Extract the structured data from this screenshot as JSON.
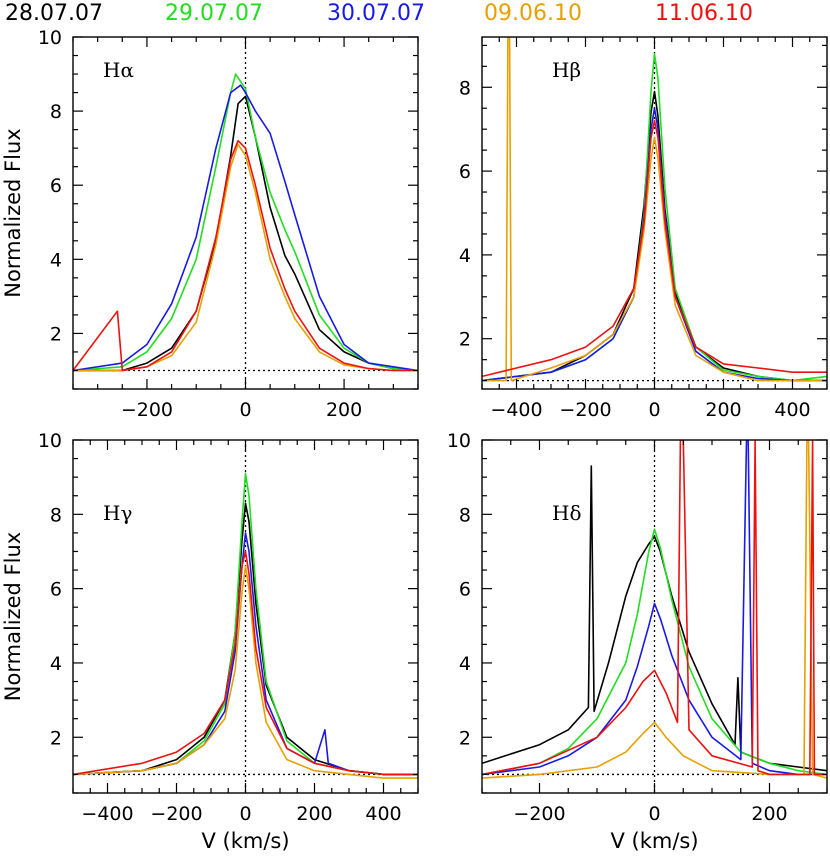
{
  "legend": [
    {
      "label": "28.07.07",
      "color": "#000000"
    },
    {
      "label": "29.07.07",
      "color": "#22dd22"
    },
    {
      "label": "30.07.07",
      "color": "#1a1ae6"
    },
    {
      "label": "09.06.10",
      "color": "#e8a000"
    },
    {
      "label": "11.06.10",
      "color": "#ee1111"
    }
  ],
  "chart_data": [
    {
      "type": "line",
      "panel": "top-left",
      "label": "Hα",
      "xlim": [
        -350,
        350
      ],
      "ylim": [
        0.5,
        10
      ],
      "xticks": [
        -200,
        0,
        200
      ],
      "yticks": [
        2,
        4,
        6,
        8,
        10
      ],
      "ylabel": "Normalized Flux",
      "xlabel": "",
      "series": [
        {
          "color": "#000000",
          "x": [
            -350,
            -250,
            -200,
            -150,
            -100,
            -60,
            -30,
            -15,
            0,
            20,
            50,
            80,
            100,
            150,
            200,
            250,
            300,
            350
          ],
          "y": [
            1.0,
            1.0,
            1.2,
            1.6,
            2.6,
            4.5,
            6.8,
            8.2,
            8.4,
            7.3,
            5.4,
            4.1,
            3.6,
            2.1,
            1.5,
            1.2,
            1.05,
            1.0
          ]
        },
        {
          "color": "#22dd22",
          "x": [
            -350,
            -250,
            -200,
            -150,
            -100,
            -60,
            -30,
            -20,
            0,
            20,
            50,
            80,
            100,
            150,
            200,
            250,
            300,
            350
          ],
          "y": [
            1.0,
            1.1,
            1.5,
            2.4,
            4.0,
            6.5,
            8.5,
            9.0,
            8.6,
            7.3,
            5.8,
            4.8,
            4.2,
            2.5,
            1.6,
            1.2,
            1.05,
            1.0
          ]
        },
        {
          "color": "#1a1ae6",
          "x": [
            -350,
            -250,
            -200,
            -150,
            -100,
            -60,
            -30,
            -10,
            0,
            20,
            50,
            80,
            100,
            150,
            200,
            250,
            300,
            350
          ],
          "y": [
            1.0,
            1.2,
            1.7,
            2.8,
            4.6,
            7.0,
            8.5,
            8.7,
            8.5,
            8.0,
            7.4,
            6.1,
            5.2,
            3.0,
            1.7,
            1.2,
            1.1,
            1.0
          ]
        },
        {
          "color": "#e8a000",
          "x": [
            -350,
            -250,
            -200,
            -150,
            -100,
            -60,
            -30,
            -15,
            0,
            20,
            50,
            80,
            100,
            150,
            200,
            250,
            300,
            350
          ],
          "y": [
            1.0,
            1.0,
            1.1,
            1.4,
            2.3,
            4.4,
            6.5,
            7.1,
            6.8,
            5.8,
            4.0,
            3.0,
            2.4,
            1.5,
            1.15,
            1.05,
            1.0,
            1.0
          ]
        },
        {
          "color": "#ee1111",
          "x": [
            -350,
            -260,
            -250,
            -200,
            -150,
            -100,
            -60,
            -30,
            -15,
            0,
            20,
            50,
            80,
            100,
            150,
            200,
            250,
            300,
            350
          ],
          "y": [
            1.0,
            2.6,
            1.0,
            1.1,
            1.5,
            2.6,
            4.6,
            6.7,
            7.2,
            7.0,
            6.0,
            4.3,
            3.2,
            2.6,
            1.6,
            1.2,
            1.05,
            1.0,
            1.0
          ]
        }
      ]
    },
    {
      "type": "line",
      "panel": "top-right",
      "label": "Hβ",
      "xlim": [
        -500,
        500
      ],
      "ylim": [
        0.8,
        9.2
      ],
      "xticks": [
        -400,
        -200,
        0,
        200,
        400
      ],
      "yticks": [
        2,
        4,
        6,
        8
      ],
      "ylabel": "",
      "xlabel": "",
      "series": [
        {
          "color": "#000000",
          "x": [
            -500,
            -300,
            -200,
            -120,
            -60,
            -30,
            -10,
            0,
            10,
            30,
            60,
            120,
            200,
            300,
            400,
            500
          ],
          "y": [
            1.0,
            1.2,
            1.6,
            2.1,
            3.2,
            5.2,
            7.4,
            7.9,
            7.3,
            5.1,
            3.1,
            1.8,
            1.3,
            1.1,
            1.0,
            1.0
          ]
        },
        {
          "color": "#22dd22",
          "x": [
            -500,
            -300,
            -200,
            -120,
            -60,
            -30,
            -10,
            0,
            10,
            30,
            60,
            120,
            200,
            300,
            400,
            500
          ],
          "y": [
            1.0,
            1.2,
            1.5,
            2.0,
            3.0,
            5.0,
            7.9,
            8.8,
            8.2,
            5.6,
            3.2,
            1.8,
            1.25,
            1.1,
            1.0,
            1.1
          ]
        },
        {
          "color": "#1a1ae6",
          "x": [
            -500,
            -300,
            -200,
            -120,
            -60,
            -30,
            -10,
            0,
            10,
            30,
            60,
            120,
            200,
            300,
            400,
            500
          ],
          "y": [
            1.0,
            1.2,
            1.5,
            2.0,
            3.0,
            4.9,
            7.0,
            7.5,
            7.0,
            5.0,
            3.0,
            1.7,
            1.2,
            1.05,
            1.0,
            1.0
          ]
        },
        {
          "color": "#e8a000",
          "x": [
            -500,
            -430,
            -425,
            -420,
            -415,
            -300,
            -200,
            -120,
            -60,
            -30,
            -10,
            0,
            10,
            30,
            60,
            120,
            200,
            300,
            400,
            500
          ],
          "y": [
            1.0,
            1.0,
            9.2,
            9.2,
            1.0,
            1.3,
            1.6,
            2.1,
            3.0,
            4.6,
            6.3,
            6.8,
            6.3,
            4.6,
            2.8,
            1.6,
            1.2,
            1.0,
            1.0,
            1.0
          ]
        },
        {
          "color": "#ee1111",
          "x": [
            -500,
            -300,
            -200,
            -120,
            -60,
            -30,
            -10,
            0,
            10,
            30,
            60,
            120,
            200,
            300,
            400,
            500
          ],
          "y": [
            1.1,
            1.5,
            1.8,
            2.3,
            3.2,
            4.8,
            6.8,
            7.2,
            6.8,
            4.8,
            3.0,
            1.8,
            1.4,
            1.3,
            1.2,
            1.2
          ]
        }
      ]
    },
    {
      "type": "line",
      "panel": "bottom-left",
      "label": "Hγ",
      "xlim": [
        -500,
        500
      ],
      "ylim": [
        0.5,
        10
      ],
      "xticks": [
        -400,
        -200,
        0,
        200,
        400
      ],
      "yticks": [
        2,
        4,
        6,
        8,
        10
      ],
      "ylabel": "Normalized Flux",
      "xlabel": "V (km/s)",
      "series": [
        {
          "color": "#000000",
          "x": [
            -500,
            -300,
            -200,
            -120,
            -60,
            -30,
            -10,
            0,
            10,
            30,
            60,
            120,
            200,
            300,
            400,
            500
          ],
          "y": [
            1.0,
            1.1,
            1.4,
            2.0,
            3.0,
            4.8,
            7.3,
            8.3,
            7.8,
            5.6,
            3.4,
            2.0,
            1.4,
            1.1,
            1.0,
            1.0
          ]
        },
        {
          "color": "#22dd22",
          "x": [
            -500,
            -300,
            -200,
            -120,
            -60,
            -30,
            -10,
            0,
            10,
            30,
            60,
            120,
            200,
            300,
            400,
            500
          ],
          "y": [
            1.0,
            1.1,
            1.3,
            1.9,
            2.9,
            4.8,
            7.8,
            9.1,
            8.5,
            6.0,
            3.5,
            1.9,
            1.3,
            1.1,
            1.0,
            1.0
          ]
        },
        {
          "color": "#1a1ae6",
          "x": [
            -500,
            -300,
            -200,
            -120,
            -60,
            -30,
            -10,
            0,
            10,
            30,
            60,
            120,
            200,
            230,
            240,
            300,
            400,
            500
          ],
          "y": [
            1.0,
            1.1,
            1.3,
            1.8,
            2.7,
            4.3,
            6.6,
            7.5,
            7.0,
            5.0,
            3.0,
            1.7,
            1.3,
            2.2,
            1.3,
            1.1,
            1.0,
            1.0
          ]
        },
        {
          "color": "#e8a000",
          "x": [
            -500,
            -300,
            -200,
            -120,
            -60,
            -30,
            -10,
            0,
            10,
            30,
            60,
            120,
            200,
            300,
            400,
            500
          ],
          "y": [
            1.0,
            1.1,
            1.3,
            1.8,
            2.5,
            3.8,
            5.9,
            6.6,
            6.0,
            4.0,
            2.4,
            1.4,
            1.1,
            1.0,
            0.9,
            0.9
          ]
        },
        {
          "color": "#ee1111",
          "x": [
            -500,
            -300,
            -200,
            -120,
            -60,
            -30,
            -10,
            0,
            10,
            30,
            60,
            120,
            200,
            300,
            400,
            500
          ],
          "y": [
            1.0,
            1.3,
            1.6,
            2.1,
            3.0,
            4.5,
            6.6,
            7.0,
            6.4,
            4.4,
            2.8,
            1.7,
            1.3,
            1.1,
            1.0,
            1.0
          ]
        }
      ]
    },
    {
      "type": "line",
      "panel": "bottom-right",
      "label": "Hδ",
      "xlim": [
        -300,
        300
      ],
      "ylim": [
        0.5,
        10
      ],
      "xticks": [
        -200,
        0,
        200
      ],
      "yticks": [
        2,
        4,
        6,
        8,
        10
      ],
      "ylabel": "",
      "xlabel": "V (km/s)",
      "series": [
        {
          "color": "#000000",
          "x": [
            -300,
            -200,
            -150,
            -115,
            -110,
            -105,
            -80,
            -50,
            -30,
            -10,
            0,
            10,
            30,
            60,
            100,
            140,
            145,
            150,
            200,
            250,
            300
          ],
          "y": [
            1.3,
            1.8,
            2.2,
            2.8,
            9.3,
            2.7,
            4.0,
            5.8,
            6.7,
            7.2,
            7.4,
            7.0,
            5.8,
            4.3,
            2.9,
            1.8,
            3.6,
            1.6,
            1.3,
            1.2,
            1.1
          ]
        },
        {
          "color": "#22dd22",
          "x": [
            -300,
            -200,
            -150,
            -100,
            -50,
            -30,
            -10,
            0,
            10,
            30,
            60,
            100,
            150,
            200,
            250,
            300
          ],
          "y": [
            1.0,
            1.3,
            1.7,
            2.5,
            4.0,
            5.3,
            7.0,
            7.6,
            7.1,
            5.7,
            3.9,
            2.5,
            1.6,
            1.3,
            1.1,
            1.0
          ]
        },
        {
          "color": "#1a1ae6",
          "x": [
            -300,
            -200,
            -150,
            -100,
            -50,
            -30,
            -10,
            0,
            10,
            30,
            60,
            100,
            150,
            160,
            163,
            170,
            200,
            250,
            300
          ],
          "y": [
            1.0,
            1.2,
            1.5,
            2.0,
            3.0,
            3.9,
            5.0,
            5.6,
            5.2,
            4.2,
            3.0,
            2.0,
            1.4,
            10,
            10,
            1.3,
            1.1,
            1.0,
            1.0
          ]
        },
        {
          "color": "#e8a000",
          "x": [
            -300,
            -200,
            -100,
            -50,
            -20,
            0,
            20,
            50,
            100,
            200,
            260,
            265,
            268,
            275,
            300
          ],
          "y": [
            0.9,
            1.0,
            1.2,
            1.6,
            2.1,
            2.4,
            2.0,
            1.5,
            1.1,
            1.0,
            1.0,
            10,
            10,
            1.0,
            0.9
          ]
        },
        {
          "color": "#ee1111",
          "x": [
            -300,
            -200,
            -100,
            -50,
            -20,
            0,
            20,
            40,
            45,
            50,
            60,
            100,
            170,
            175,
            180,
            200,
            270,
            275,
            278,
            300
          ],
          "y": [
            1.0,
            1.3,
            2.0,
            2.8,
            3.5,
            3.8,
            3.2,
            2.4,
            10,
            10,
            2.2,
            1.5,
            1.2,
            10,
            1.1,
            1.0,
            1.0,
            10,
            1.0,
            1.0
          ]
        }
      ]
    }
  ]
}
